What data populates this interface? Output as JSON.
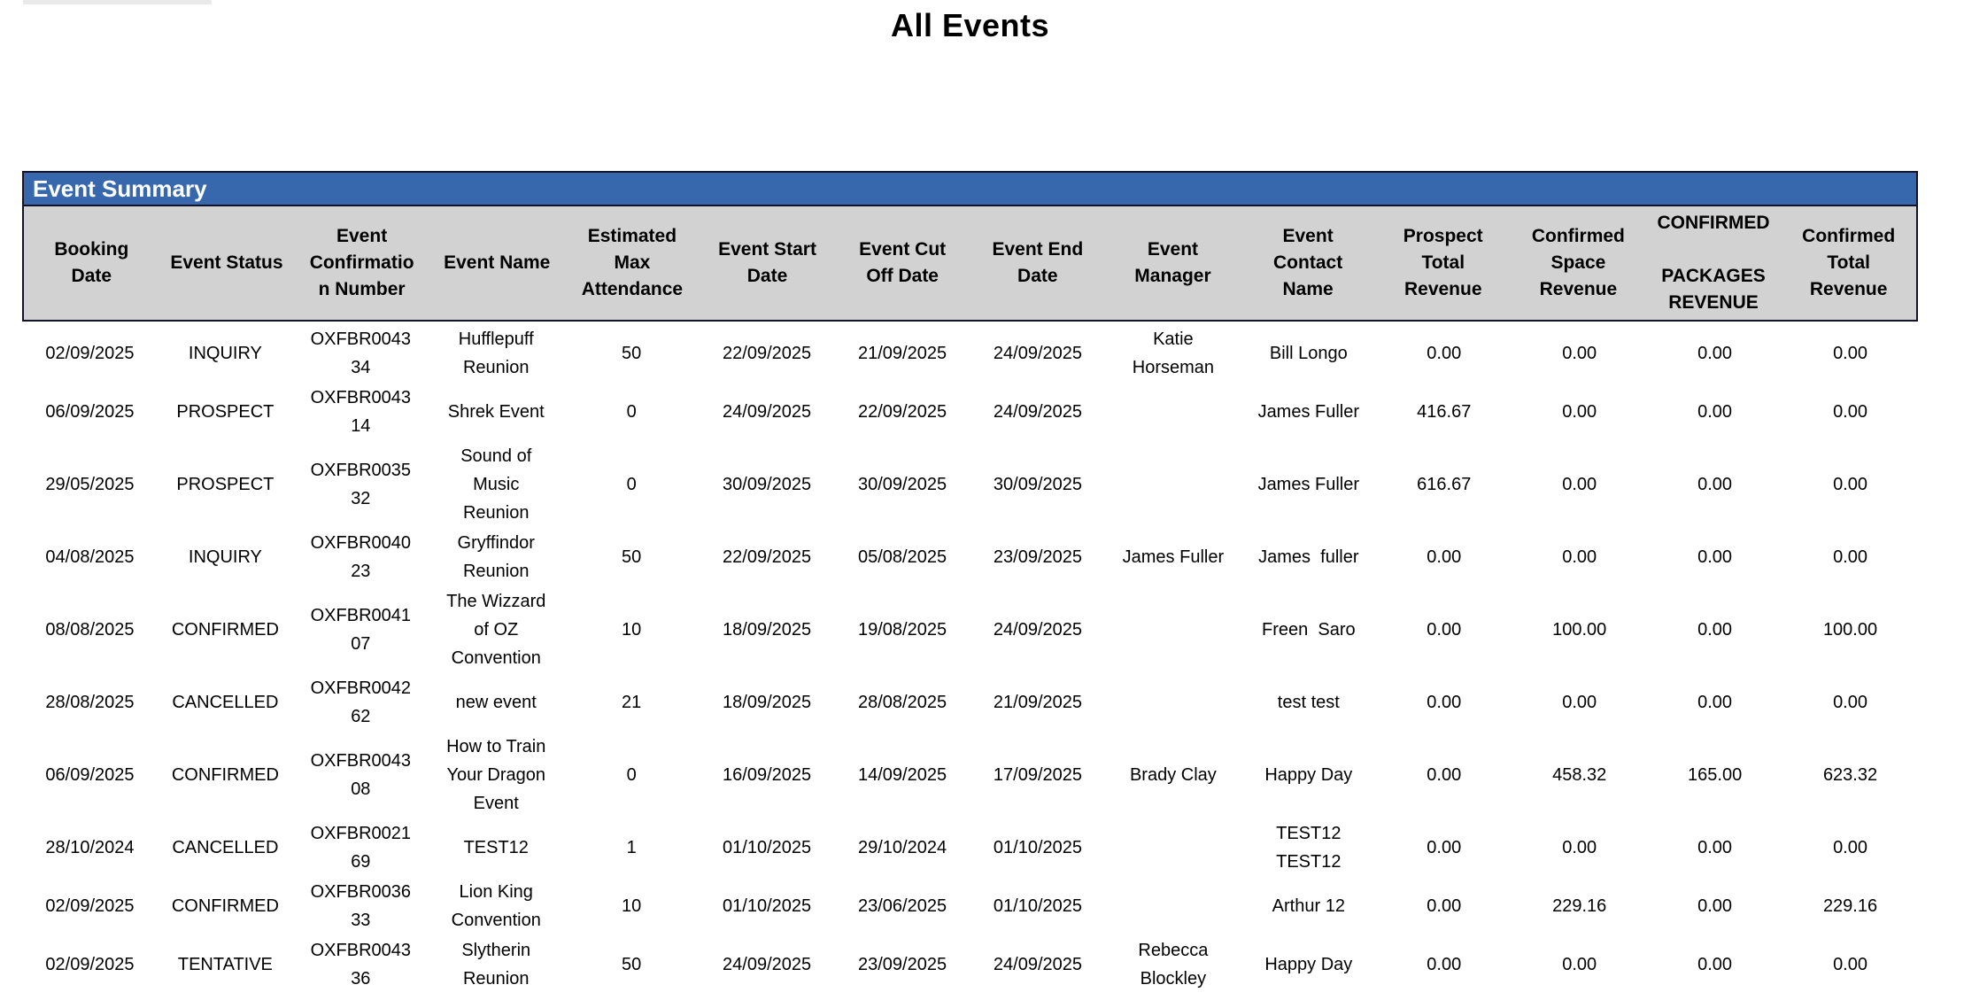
{
  "page": {
    "title": "All Events"
  },
  "report": {
    "section_title": "Event Summary",
    "columns": [
      "Booking\nDate",
      "Event Status",
      "Event\nConfirmatio\nn Number",
      "Event Name",
      "Estimated\nMax\nAttendance",
      "Event Start\nDate",
      "Event Cut\nOff Date",
      "Event End\nDate",
      "Event\nManager",
      "Event\nContact\nName",
      "Prospect\nTotal\nRevenue",
      "Confirmed\nSpace\nRevenue",
      "CONFIRMED\n\nPACKAGES\nREVENUE",
      "Confirmed\nTotal\nRevenue"
    ],
    "rows": [
      [
        "02/09/2025",
        "INQUIRY",
        "OXFBR0043\n34",
        "Hufflepuff\nReunion",
        "50",
        "22/09/2025",
        "21/09/2025",
        "24/09/2025",
        "Katie\nHorseman",
        "Bill Longo",
        "0.00",
        "0.00",
        "0.00",
        "0.00"
      ],
      [
        "06/09/2025",
        "PROSPECT",
        "OXFBR0043\n14",
        "Shrek Event",
        "0",
        "24/09/2025",
        "22/09/2025",
        "24/09/2025",
        "",
        "James Fuller",
        "416.67",
        "0.00",
        "0.00",
        "0.00"
      ],
      [
        "29/05/2025",
        "PROSPECT",
        "OXFBR0035\n32",
        "Sound of\nMusic\nReunion",
        "0",
        "30/09/2025",
        "30/09/2025",
        "30/09/2025",
        "",
        "James Fuller",
        "616.67",
        "0.00",
        "0.00",
        "0.00"
      ],
      [
        "04/08/2025",
        "INQUIRY",
        "OXFBR0040\n23",
        "Gryffindor\nReunion",
        "50",
        "22/09/2025",
        "05/08/2025",
        "23/09/2025",
        "James Fuller",
        "James  fuller",
        "0.00",
        "0.00",
        "0.00",
        "0.00"
      ],
      [
        "08/08/2025",
        "CONFIRMED",
        "OXFBR0041\n07",
        "The Wizzard\nof OZ\nConvention",
        "10",
        "18/09/2025",
        "19/08/2025",
        "24/09/2025",
        "",
        "Freen  Saro",
        "0.00",
        "100.00",
        "0.00",
        "100.00"
      ],
      [
        "28/08/2025",
        "CANCELLED",
        "OXFBR0042\n62",
        "new event",
        "21",
        "18/09/2025",
        "28/08/2025",
        "21/09/2025",
        "",
        "test test",
        "0.00",
        "0.00",
        "0.00",
        "0.00"
      ],
      [
        "06/09/2025",
        "CONFIRMED",
        "OXFBR0043\n08",
        "How to Train\nYour Dragon\nEvent",
        "0",
        "16/09/2025",
        "14/09/2025",
        "17/09/2025",
        "Brady Clay",
        "Happy Day",
        "0.00",
        "458.32",
        "165.00",
        "623.32"
      ],
      [
        "28/10/2024",
        "CANCELLED",
        "OXFBR0021\n69",
        "TEST12",
        "1",
        "01/10/2025",
        "29/10/2024",
        "01/10/2025",
        "",
        "TEST12\nTEST12",
        "0.00",
        "0.00",
        "0.00",
        "0.00"
      ],
      [
        "02/09/2025",
        "CONFIRMED",
        "OXFBR0036\n33",
        "Lion King\nConvention",
        "10",
        "01/10/2025",
        "23/06/2025",
        "01/10/2025",
        "",
        "Arthur 12",
        "0.00",
        "229.16",
        "0.00",
        "229.16"
      ],
      [
        "02/09/2025",
        "TENTATIVE",
        "OXFBR0043\n36",
        "Slytherin\nReunion",
        "50",
        "24/09/2025",
        "23/09/2025",
        "24/09/2025",
        "Rebecca\nBlockley",
        "Happy Day",
        "0.00",
        "0.00",
        "0.00",
        "0.00"
      ]
    ]
  },
  "colors": {
    "accent_blue": "#3768AD",
    "header_gray": "#D2D2D2",
    "border_dark": "#12122A"
  }
}
